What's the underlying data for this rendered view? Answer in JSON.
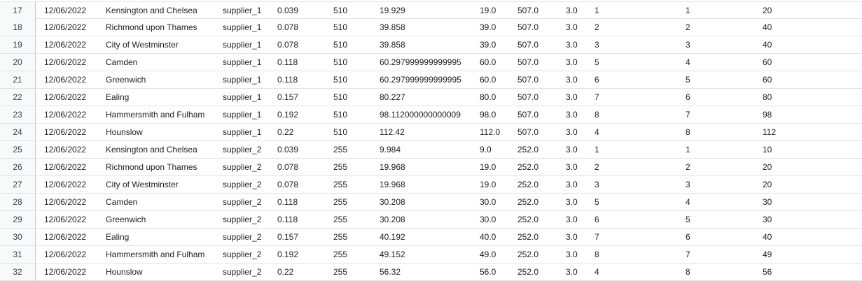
{
  "rows": [
    {
      "index": "17",
      "cols": [
        "12/06/2022",
        "Kensington and Chelsea",
        "supplier_1",
        "0.039",
        "510",
        "19.929",
        "19.0",
        "507.0",
        "3.0",
        "1",
        "1",
        "20"
      ]
    },
    {
      "index": "18",
      "cols": [
        "12/06/2022",
        "Richmond upon Thames",
        "supplier_1",
        "0.078",
        "510",
        "39.858",
        "39.0",
        "507.0",
        "3.0",
        "2",
        "2",
        "40"
      ]
    },
    {
      "index": "19",
      "cols": [
        "12/06/2022",
        "City of Westminster",
        "supplier_1",
        "0.078",
        "510",
        "39.858",
        "39.0",
        "507.0",
        "3.0",
        "3",
        "3",
        "40"
      ]
    },
    {
      "index": "20",
      "cols": [
        "12/06/2022",
        "Camden",
        "supplier_1",
        "0.118",
        "510",
        "60.297999999999995",
        "60.0",
        "507.0",
        "3.0",
        "5",
        "4",
        "60"
      ]
    },
    {
      "index": "21",
      "cols": [
        "12/06/2022",
        "Greenwich",
        "supplier_1",
        "0.118",
        "510",
        "60.297999999999995",
        "60.0",
        "507.0",
        "3.0",
        "6",
        "5",
        "60"
      ]
    },
    {
      "index": "22",
      "cols": [
        "12/06/2022",
        "Ealing",
        "supplier_1",
        "0.157",
        "510",
        "80.227",
        "80.0",
        "507.0",
        "3.0",
        "7",
        "6",
        "80"
      ]
    },
    {
      "index": "23",
      "cols": [
        "12/06/2022",
        "Hammersmith and Fulham",
        "supplier_1",
        "0.192",
        "510",
        "98.112000000000009",
        "98.0",
        "507.0",
        "3.0",
        "8",
        "7",
        "98"
      ]
    },
    {
      "index": "24",
      "cols": [
        "12/06/2022",
        "Hounslow",
        "supplier_1",
        "0.22",
        "510",
        "112.42",
        "112.0",
        "507.0",
        "3.0",
        "4",
        "8",
        "112"
      ]
    },
    {
      "index": "25",
      "cols": [
        "12/06/2022",
        "Kensington and Chelsea",
        "supplier_2",
        "0.039",
        "255",
        "9.984",
        "9.0",
        "252.0",
        "3.0",
        "1",
        "1",
        "10"
      ]
    },
    {
      "index": "26",
      "cols": [
        "12/06/2022",
        "Richmond upon Thames",
        "supplier_2",
        "0.078",
        "255",
        "19.968",
        "19.0",
        "252.0",
        "3.0",
        "2",
        "2",
        "20"
      ]
    },
    {
      "index": "27",
      "cols": [
        "12/06/2022",
        "City of Westminster",
        "supplier_2",
        "0.078",
        "255",
        "19.968",
        "19.0",
        "252.0",
        "3.0",
        "3",
        "3",
        "20"
      ]
    },
    {
      "index": "28",
      "cols": [
        "12/06/2022",
        "Camden",
        "supplier_2",
        "0.118",
        "255",
        "30.208",
        "30.0",
        "252.0",
        "3.0",
        "5",
        "4",
        "30"
      ]
    },
    {
      "index": "29",
      "cols": [
        "12/06/2022",
        "Greenwich",
        "supplier_2",
        "0.118",
        "255",
        "30.208",
        "30.0",
        "252.0",
        "3.0",
        "6",
        "5",
        "30"
      ]
    },
    {
      "index": "30",
      "cols": [
        "12/06/2022",
        "Ealing",
        "supplier_2",
        "0.157",
        "255",
        "40.192",
        "40.0",
        "252.0",
        "3.0",
        "7",
        "6",
        "40"
      ]
    },
    {
      "index": "31",
      "cols": [
        "12/06/2022",
        "Hammersmith and Fulham",
        "supplier_2",
        "0.192",
        "255",
        "49.152",
        "49.0",
        "252.0",
        "3.0",
        "8",
        "7",
        "49"
      ]
    },
    {
      "index": "32",
      "cols": [
        "12/06/2022",
        "Hounslow",
        "supplier_2",
        "0.22",
        "255",
        "56.32",
        "56.0",
        "252.0",
        "3.0",
        "4",
        "8",
        "56"
      ]
    }
  ]
}
